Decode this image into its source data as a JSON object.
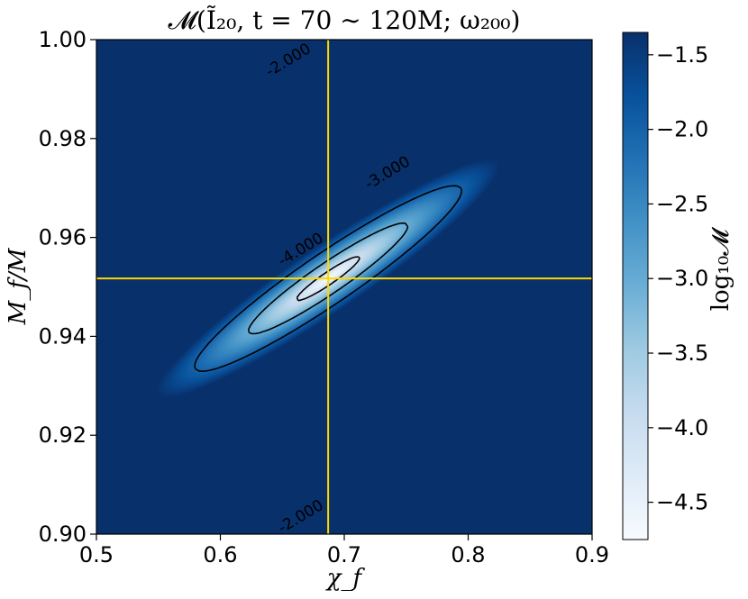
{
  "chart_data": {
    "type": "heatmap",
    "title": "𝓜(Ĩ₂₀, t = 70 ∼ 120M; ω₂₀₀)",
    "xlabel": "χ_f",
    "ylabel": "M_f/M",
    "xlim": [
      0.5,
      0.9
    ],
    "ylim": [
      0.9,
      1.0
    ],
    "xticks": [
      "0.5",
      "0.6",
      "0.7",
      "0.8",
      "0.9"
    ],
    "yticks": [
      "0.90",
      "0.92",
      "0.94",
      "0.96",
      "0.98",
      "1.00"
    ],
    "colorbar": {
      "label": "log₁₀𝓜",
      "range": [
        -4.75,
        -1.35
      ],
      "ticks": [
        "−1.5",
        "−2.0",
        "−2.5",
        "−3.0",
        "−3.5",
        "−4.0",
        "−4.5"
      ],
      "colormap": "Blues",
      "colors": [
        "#f7fbff",
        "#deebf7",
        "#c6dbef",
        "#9ecae1",
        "#6baed6",
        "#4292c6",
        "#2171b5",
        "#08519c",
        "#08306b"
      ]
    },
    "minimum": {
      "x": 0.687,
      "y": 0.9517,
      "value": -4.75
    },
    "contours": [
      {
        "level": -4.0,
        "label": "-4.000"
      },
      {
        "level": -3.0,
        "label": "-3.000"
      },
      {
        "level": -2.0,
        "label": "-2.000"
      }
    ],
    "crosshair": {
      "x": 0.687,
      "y": 0.9517,
      "color": "#ffd700"
    },
    "grid": false
  }
}
